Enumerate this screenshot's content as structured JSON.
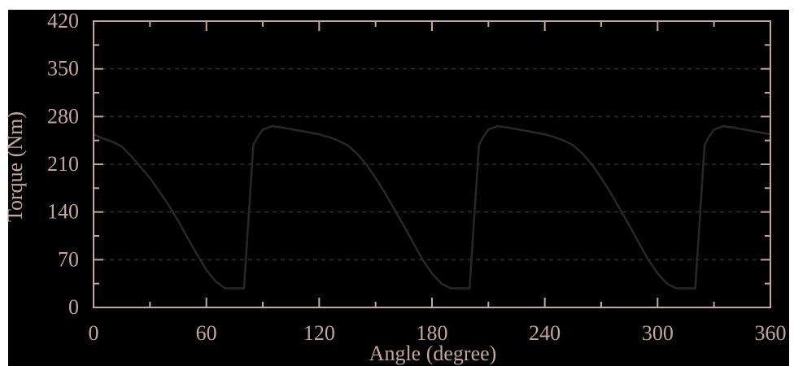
{
  "chart_data": {
    "type": "line",
    "title": "",
    "xlabel": "Angle (degree)",
    "ylabel": "Torque (Nm)",
    "xlim": [
      0,
      360
    ],
    "ylim": [
      0,
      420
    ],
    "xticks": [
      0,
      60,
      120,
      180,
      240,
      300,
      360
    ],
    "yticks": [
      0,
      70,
      140,
      210,
      280,
      350,
      420
    ],
    "x_tick_labels": [
      "0",
      "60",
      "120",
      "180",
      "240",
      "300",
      "360"
    ],
    "y_tick_labels": [
      "0",
      "70",
      "140",
      "210",
      "280",
      "350",
      "420"
    ],
    "grid": "horizontal-dashed",
    "legend": "none",
    "series": [
      {
        "x": [
          0,
          5,
          10,
          15,
          20,
          25,
          30,
          35,
          40,
          45,
          50,
          55,
          60,
          65,
          70,
          75,
          80,
          85,
          87,
          90,
          95,
          100,
          110,
          120,
          125,
          130,
          135,
          140,
          145,
          150,
          155,
          160,
          165,
          170,
          175,
          180,
          185,
          190,
          195,
          200,
          205,
          207,
          210,
          215,
          220,
          230,
          240,
          245,
          250,
          255,
          260,
          265,
          270,
          275,
          280,
          285,
          290,
          295,
          300,
          305,
          310,
          315,
          320,
          325,
          327,
          330,
          335,
          340,
          350,
          360
        ],
        "y": [
          254,
          248,
          243,
          236,
          222,
          206,
          190,
          170,
          150,
          127,
          102,
          78,
          55,
          38,
          28,
          28,
          28,
          238,
          249,
          261,
          266,
          264,
          259,
          254,
          250,
          245,
          238,
          226,
          210,
          190,
          168,
          144,
          120,
          95,
          70,
          50,
          35,
          28,
          28,
          28,
          238,
          249,
          261,
          266,
          264,
          259,
          254,
          250,
          245,
          238,
          226,
          210,
          190,
          168,
          144,
          120,
          95,
          70,
          50,
          35,
          28,
          28,
          28,
          238,
          249,
          261,
          266,
          264,
          259,
          254
        ]
      }
    ]
  },
  "colors": {
    "background": "#000000",
    "axis": "#c3a69e",
    "text": "#c3a69e",
    "grid": "#2e2e2e",
    "line": "#282828"
  }
}
